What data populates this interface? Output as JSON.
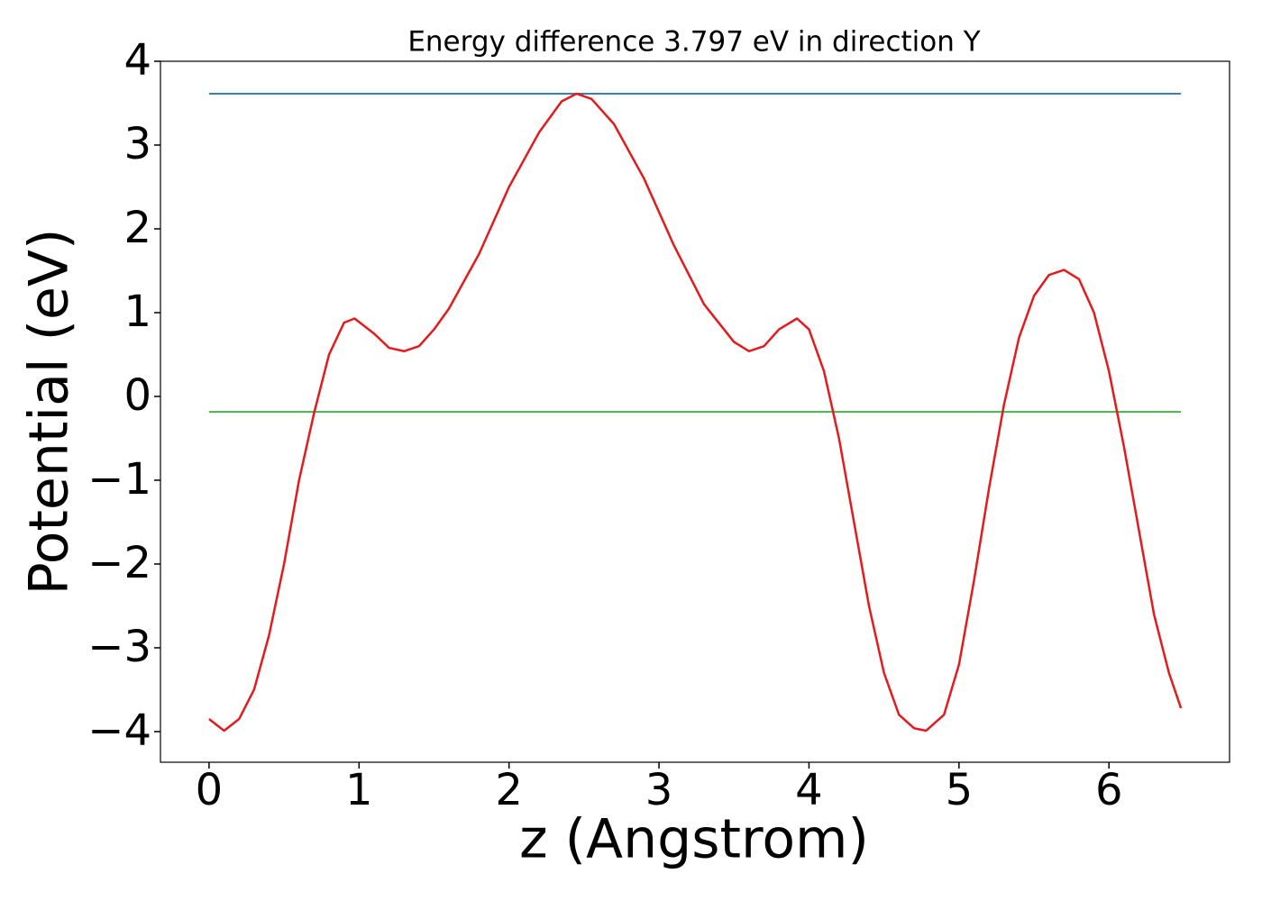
{
  "chart_data": {
    "type": "line",
    "title": "Energy difference 3.797 eV in direction Y",
    "xlabel": "z (Angstrom)",
    "ylabel": "Potential (eV)",
    "x": [
      0,
      0.1,
      0.2,
      0.3,
      0.4,
      0.5,
      0.6,
      0.7,
      0.8,
      0.9,
      0.97,
      1.1,
      1.2,
      1.3,
      1.4,
      1.5,
      1.6,
      1.8,
      2.0,
      2.2,
      2.35,
      2.45,
      2.55,
      2.7,
      2.9,
      3.1,
      3.3,
      3.5,
      3.6,
      3.7,
      3.8,
      3.92,
      4.0,
      4.1,
      4.2,
      4.3,
      4.4,
      4.5,
      4.6,
      4.7,
      4.78,
      4.9,
      5.0,
      5.1,
      5.2,
      5.3,
      5.4,
      5.5,
      5.6,
      5.7,
      5.8,
      5.9,
      6.0,
      6.1,
      6.2,
      6.3,
      6.4,
      6.48
    ],
    "series": [
      {
        "color": "#e41a1c",
        "values": [
          -3.85,
          -3.99,
          -3.85,
          -3.5,
          -2.85,
          -2.0,
          -1.0,
          -0.2,
          0.5,
          0.88,
          0.93,
          0.75,
          0.58,
          0.54,
          0.6,
          0.8,
          1.05,
          1.7,
          2.5,
          3.15,
          3.52,
          3.613,
          3.55,
          3.25,
          2.6,
          1.8,
          1.1,
          0.65,
          0.54,
          0.6,
          0.8,
          0.93,
          0.8,
          0.3,
          -0.5,
          -1.5,
          -2.5,
          -3.3,
          -3.8,
          -3.96,
          -3.99,
          -3.8,
          -3.2,
          -2.2,
          -1.1,
          -0.1,
          0.7,
          1.2,
          1.45,
          1.51,
          1.4,
          1.0,
          0.3,
          -0.6,
          -1.6,
          -2.6,
          -3.3,
          -3.72
        ]
      }
    ],
    "hlines": [
      {
        "value": 3.613,
        "color": "#377eb8"
      },
      {
        "value": -0.184,
        "color": "#4daf4a"
      }
    ],
    "xlim": [
      -0.324,
      6.804
    ],
    "ylim": [
      -4.366,
      4.0
    ],
    "xticks": [
      0,
      1,
      2,
      3,
      4,
      5,
      6
    ],
    "yticks": [
      {
        "value": -4,
        "label": "−4"
      },
      {
        "value": -3,
        "label": "−3"
      },
      {
        "value": -2,
        "label": "−2"
      },
      {
        "value": -1,
        "label": "−1"
      },
      0,
      1,
      2,
      3,
      4
    ]
  }
}
